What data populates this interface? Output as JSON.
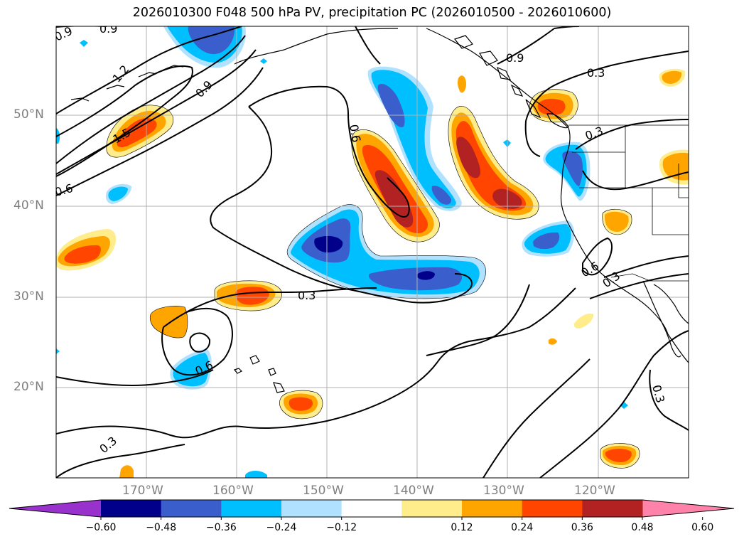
{
  "title": "2026010300 F048 500 hPa PV, precipitation PC (2026010500 - 2026010600)",
  "latitude_labels": [
    "50°N",
    "40°N",
    "30°N",
    "20°N"
  ],
  "longitude_labels": [
    "170°W",
    "160°W",
    "150°W",
    "140°W",
    "130°W",
    "120°W"
  ],
  "contour_labels": [
    "0.9",
    "0.9",
    "1.2",
    "0.9",
    "1.5",
    "0.6",
    "0.6",
    "0.9",
    "0.3",
    "0.3",
    "0.3",
    "0.6",
    "0.3",
    "0.6",
    "0.3",
    "0.3"
  ],
  "colorbar": {
    "ticks": [
      "−0.60",
      "−0.48",
      "−0.36",
      "−0.24",
      "−0.12",
      "0.12",
      "0.24",
      "0.36",
      "0.48",
      "0.60"
    ],
    "colors": [
      "#9932cc",
      "#00008b",
      "#3a5fcd",
      "#00bfff",
      "#b0e2ff",
      "#ffffff",
      "#ffec8b",
      "#ffa500",
      "#ff4500",
      "#b22222",
      "#ff82ab"
    ]
  }
}
